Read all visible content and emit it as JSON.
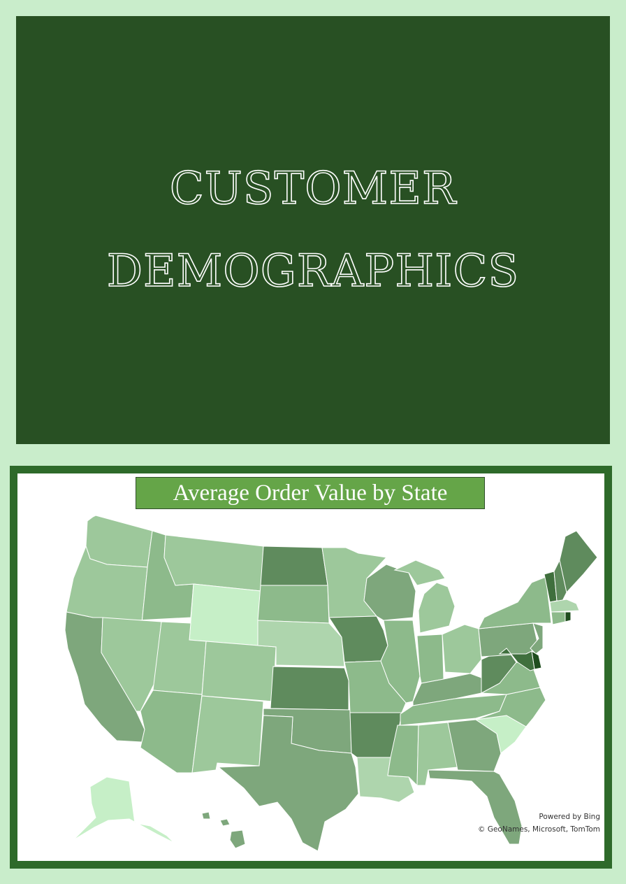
{
  "hero": {
    "title_line1": "CUSTOMER",
    "title_line2": "DEMOGRAPHICS",
    "background": "#285023"
  },
  "map": {
    "title": "Average Order Value by State",
    "title_background": "#65a548",
    "frame_color": "#2e6a2a",
    "legend": "none",
    "credits": {
      "powered_by": "Powered by Bing",
      "copyright": "© GeoNames, Microsoft, TomTom"
    },
    "shade_scale": {
      "1": "#c6efc7",
      "2": "#aed5ad",
      "3": "#9dc89b",
      "4": "#8dba8b",
      "5": "#7ea77c",
      "6": "#5f8b5d",
      "7": "#3f6f3d",
      "8": "#1f4d1e"
    },
    "states": [
      {
        "name": "Washington",
        "shade": 3
      },
      {
        "name": "Oregon",
        "shade": 3
      },
      {
        "name": "California",
        "shade": 5
      },
      {
        "name": "Idaho",
        "shade": 4
      },
      {
        "name": "Nevada",
        "shade": 3
      },
      {
        "name": "Montana",
        "shade": 3
      },
      {
        "name": "Wyoming",
        "shade": 1
      },
      {
        "name": "Utah",
        "shade": 3
      },
      {
        "name": "Arizona",
        "shade": 4
      },
      {
        "name": "Colorado",
        "shade": 3
      },
      {
        "name": "New Mexico",
        "shade": 3
      },
      {
        "name": "North Dakota",
        "shade": 6
      },
      {
        "name": "South Dakota",
        "shade": 4
      },
      {
        "name": "Nebraska",
        "shade": 2
      },
      {
        "name": "Kansas",
        "shade": 6
      },
      {
        "name": "Oklahoma",
        "shade": 5
      },
      {
        "name": "Texas",
        "shade": 5
      },
      {
        "name": "Minnesota",
        "shade": 3
      },
      {
        "name": "Iowa",
        "shade": 6
      },
      {
        "name": "Missouri",
        "shade": 4
      },
      {
        "name": "Arkansas",
        "shade": 6
      },
      {
        "name": "Louisiana",
        "shade": 2
      },
      {
        "name": "Wisconsin",
        "shade": 5
      },
      {
        "name": "Illinois",
        "shade": 4
      },
      {
        "name": "Michigan",
        "shade": 3
      },
      {
        "name": "Indiana",
        "shade": 4
      },
      {
        "name": "Ohio",
        "shade": 3
      },
      {
        "name": "Kentucky",
        "shade": 5
      },
      {
        "name": "Tennessee",
        "shade": 4
      },
      {
        "name": "Mississippi",
        "shade": 4
      },
      {
        "name": "Alabama",
        "shade": 3
      },
      {
        "name": "Georgia",
        "shade": 5
      },
      {
        "name": "Florida",
        "shade": 5
      },
      {
        "name": "South Carolina",
        "shade": 1
      },
      {
        "name": "North Carolina",
        "shade": 4
      },
      {
        "name": "Virginia",
        "shade": 4
      },
      {
        "name": "West Virginia",
        "shade": 6
      },
      {
        "name": "Pennsylvania",
        "shade": 5
      },
      {
        "name": "New York",
        "shade": 4
      },
      {
        "name": "Vermont",
        "shade": 7
      },
      {
        "name": "New Hampshire",
        "shade": 6
      },
      {
        "name": "Maine",
        "shade": 6
      },
      {
        "name": "Massachusetts",
        "shade": 2
      },
      {
        "name": "Connecticut",
        "shade": 4
      },
      {
        "name": "Rhode Island",
        "shade": 8
      },
      {
        "name": "New Jersey",
        "shade": 5
      },
      {
        "name": "Delaware",
        "shade": 8
      },
      {
        "name": "Maryland",
        "shade": 7
      },
      {
        "name": "Alaska",
        "shade": 1
      },
      {
        "name": "Hawaii",
        "shade": 5
      }
    ]
  }
}
